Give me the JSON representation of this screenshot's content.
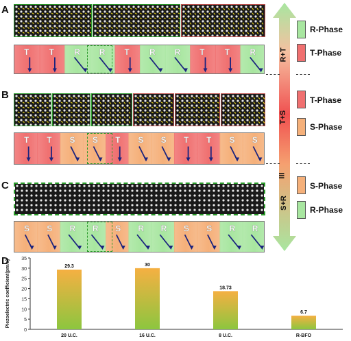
{
  "panels": {
    "a": {
      "letter": "A",
      "labels": [
        "T",
        "T",
        "R",
        "R",
        "T",
        "R",
        "R",
        "T",
        "T",
        "R"
      ]
    },
    "b": {
      "letter": "B",
      "labels": [
        "T",
        "T",
        "S",
        "S",
        "T",
        "S",
        "S",
        "T",
        "T",
        "S",
        "S"
      ]
    },
    "c": {
      "letter": "C",
      "labels": [
        "S",
        "S",
        "R",
        "R",
        "S",
        "R",
        "R",
        "S",
        "S",
        "R",
        "R"
      ]
    },
    "d": {
      "letter": "D"
    }
  },
  "legend": [
    {
      "label": "R-Phase",
      "color": "#a8e6a0"
    },
    {
      "label": "T-Phase",
      "color": "#f07070"
    },
    {
      "label": "T-Phase",
      "color": "#f07070"
    },
    {
      "label": "S-Phase",
      "color": "#f5b07a"
    },
    {
      "label": "S-Phase",
      "color": "#f5b07a"
    },
    {
      "label": "R-Phase",
      "color": "#a8e6a0"
    }
  ],
  "vertical_arrow": {
    "segments": [
      "R+T",
      "T+S",
      "III",
      "S+R"
    ]
  },
  "colors": {
    "r_phase": "#a8e6a0",
    "t_phase": "#f07070",
    "s_phase": "#f5b07a",
    "arrow_dark": "#1a237e"
  },
  "chart_data": {
    "type": "bar",
    "title": "",
    "xlabel": "",
    "ylabel": "Piezoelectric coefficient(pm/v)",
    "categories": [
      "20 U.C.",
      "16 U.C.",
      "8 U.C.",
      "R-BFO"
    ],
    "values": [
      29.3,
      30,
      18.73,
      6.7
    ],
    "value_labels": [
      "29.3",
      "30",
      "18.73",
      "6.7"
    ],
    "ylim": [
      0,
      35
    ],
    "yticks": [
      "0",
      "5",
      "10",
      "15",
      "20",
      "25",
      "30",
      "35"
    ],
    "grid": false,
    "bar_gradient": [
      "#f5b042",
      "#8cc63f"
    ]
  }
}
